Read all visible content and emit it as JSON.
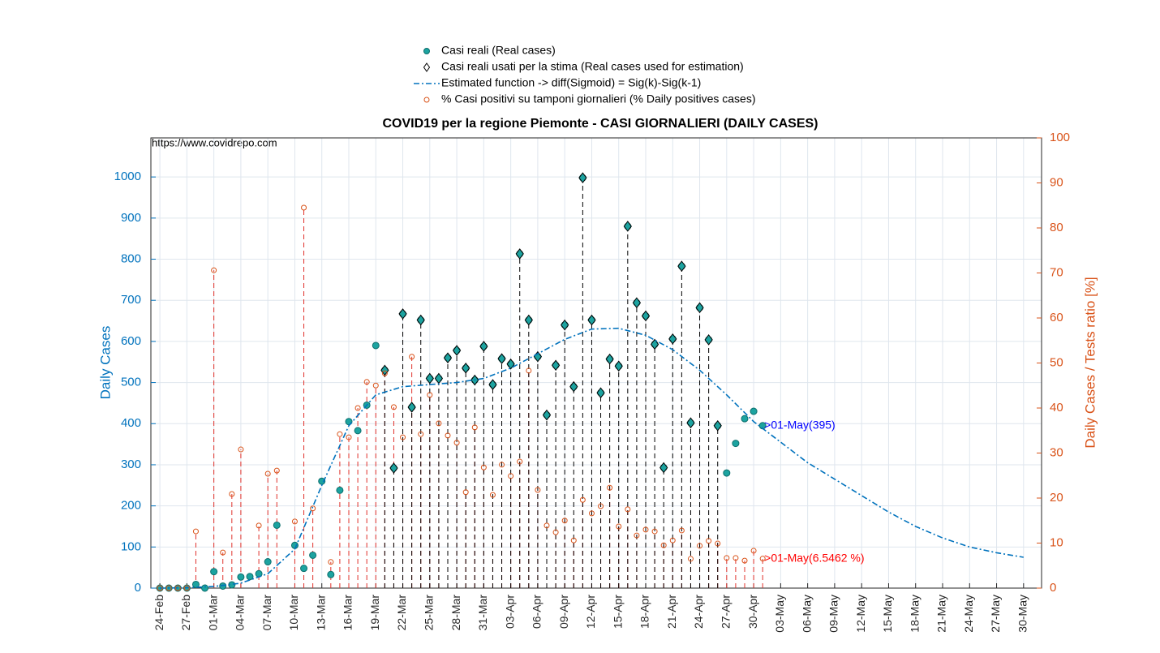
{
  "chart_data": {
    "type": "scatter",
    "title": "COVID19 per la regione Piemonte - CASI GIORNALIERI (DAILY CASES)",
    "source_note": "https://www.covidrepo.com",
    "ylabel": "Daily Cases",
    "y2label": "Daily Cases / Tests ratio [%]",
    "grid": true,
    "legend_position": "top",
    "xlim": [
      -1,
      98
    ],
    "xticks": [
      {
        "value": 0,
        "label": "24-Feb"
      },
      {
        "value": 3,
        "label": "27-Feb"
      },
      {
        "value": 6,
        "label": "01-Mar"
      },
      {
        "value": 9,
        "label": "04-Mar"
      },
      {
        "value": 12,
        "label": "07-Mar"
      },
      {
        "value": 15,
        "label": "10-Mar"
      },
      {
        "value": 18,
        "label": "13-Mar"
      },
      {
        "value": 21,
        "label": "16-Mar"
      },
      {
        "value": 24,
        "label": "19-Mar"
      },
      {
        "value": 27,
        "label": "22-Mar"
      },
      {
        "value": 30,
        "label": "25-Mar"
      },
      {
        "value": 33,
        "label": "28-Mar"
      },
      {
        "value": 36,
        "label": "31-Mar"
      },
      {
        "value": 39,
        "label": "03-Apr"
      },
      {
        "value": 42,
        "label": "06-Apr"
      },
      {
        "value": 45,
        "label": "09-Apr"
      },
      {
        "value": 48,
        "label": "12-Apr"
      },
      {
        "value": 51,
        "label": "15-Apr"
      },
      {
        "value": 54,
        "label": "18-Apr"
      },
      {
        "value": 57,
        "label": "21-Apr"
      },
      {
        "value": 60,
        "label": "24-Apr"
      },
      {
        "value": 63,
        "label": "27-Apr"
      },
      {
        "value": 66,
        "label": "30-Apr"
      },
      {
        "value": 69,
        "label": "03-May"
      },
      {
        "value": 72,
        "label": "06-May"
      },
      {
        "value": 75,
        "label": "09-May"
      },
      {
        "value": 78,
        "label": "12-May"
      },
      {
        "value": 81,
        "label": "15-May"
      },
      {
        "value": 84,
        "label": "18-May"
      },
      {
        "value": 87,
        "label": "21-May"
      },
      {
        "value": 90,
        "label": "24-May"
      },
      {
        "value": 93,
        "label": "27-May"
      },
      {
        "value": 96,
        "label": "30-May"
      }
    ],
    "ylim": [
      0,
      1095
    ],
    "yticks": [
      0,
      100,
      200,
      300,
      400,
      500,
      600,
      700,
      800,
      900,
      1000
    ],
    "y2lim": [
      0,
      100
    ],
    "y2ticks": [
      0,
      10,
      20,
      30,
      40,
      50,
      60,
      70,
      80,
      90,
      100
    ],
    "series": [
      {
        "name": "Casi reali (Real cases)",
        "color": "#1ca3a0",
        "marker": "circle",
        "x": [
          0,
          1,
          2,
          3,
          4,
          5,
          6,
          7,
          8,
          9,
          10,
          11,
          12,
          13,
          14,
          15,
          16,
          17,
          18,
          19,
          20,
          21,
          22,
          23,
          24,
          25,
          26,
          27,
          28,
          29,
          30,
          31,
          32,
          33,
          34,
          35,
          36,
          37,
          38,
          39,
          40,
          41,
          42,
          43,
          44,
          45,
          46,
          47,
          48,
          49,
          50,
          51,
          52,
          53,
          54,
          55,
          56,
          57,
          58,
          59,
          60,
          61,
          62,
          63,
          64,
          65,
          66,
          67
        ],
        "values": [
          0,
          0,
          0,
          0,
          9,
          0,
          40,
          5,
          8,
          27,
          28,
          35,
          64,
          153,
          null,
          104,
          48,
          80,
          260,
          33,
          238,
          405,
          383,
          445,
          590,
          530,
          292,
          667,
          440,
          652,
          510,
          510,
          560,
          578,
          535,
          506,
          588,
          495,
          558,
          545,
          813,
          652,
          563,
          421,
          542,
          640,
          490,
          998,
          652,
          475,
          557,
          540,
          880,
          694,
          662,
          593,
          293,
          606,
          783,
          402,
          682,
          604,
          395,
          280,
          352,
          412,
          430,
          395
        ]
      },
      {
        "name": "Casi reali usati per la stima (Real cases used for estimation)",
        "color": "#1ca3a0",
        "marker": "diamond",
        "stems": true,
        "x": [
          25,
          26,
          27,
          28,
          29,
          30,
          31,
          32,
          33,
          34,
          35,
          36,
          37,
          38,
          39,
          40,
          41,
          42,
          43,
          44,
          45,
          46,
          47,
          48,
          49,
          50,
          51,
          52,
          53,
          54,
          55,
          56,
          57,
          58,
          59,
          60,
          61,
          62
        ],
        "values": [
          530,
          292,
          667,
          440,
          652,
          510,
          510,
          560,
          578,
          535,
          506,
          588,
          495,
          558,
          545,
          813,
          652,
          563,
          421,
          542,
          640,
          490,
          998,
          652,
          475,
          557,
          540,
          880,
          694,
          662,
          593,
          293,
          606,
          783,
          402,
          682,
          604,
          395
        ]
      },
      {
        "name": "Estimated function -> diff(Sigmoid) = Sig(k)-Sig(k-1)",
        "color": "#0072bd",
        "marker": "line",
        "x": [
          0,
          3,
          6,
          9,
          12,
          15,
          18,
          21,
          24,
          27,
          30,
          33,
          36,
          39,
          42,
          45,
          48,
          51,
          54,
          57,
          60,
          63,
          66,
          69,
          72,
          75,
          78,
          81,
          84,
          87,
          90,
          93,
          96
        ],
        "values": [
          0,
          1,
          4,
          12,
          35,
          95,
          250,
          395,
          470,
          490,
          495,
          500,
          510,
          535,
          570,
          605,
          630,
          632,
          615,
          580,
          530,
          470,
          405,
          355,
          305,
          265,
          225,
          185,
          150,
          122,
          100,
          86,
          75
        ]
      },
      {
        "name": "% Casi positivi su tamponi giornalieri (% Daily positives cases)",
        "color": "#d95319",
        "marker": "open-circle",
        "axis": "y2",
        "stems": true,
        "x": [
          0,
          1,
          2,
          3,
          4,
          5,
          6,
          7,
          8,
          9,
          10,
          11,
          12,
          13,
          14,
          15,
          16,
          17,
          18,
          19,
          20,
          21,
          22,
          23,
          24,
          25,
          26,
          27,
          28,
          29,
          30,
          31,
          32,
          33,
          34,
          35,
          36,
          37,
          38,
          39,
          40,
          41,
          42,
          43,
          44,
          45,
          46,
          47,
          48,
          49,
          50,
          51,
          52,
          53,
          54,
          55,
          56,
          57,
          58,
          59,
          60,
          61,
          62,
          63,
          64,
          65,
          66,
          67
        ],
        "values": [
          0,
          0,
          0,
          0,
          12.6,
          null,
          70.6,
          7.9,
          20.9,
          30.8,
          null,
          13.9,
          25.4,
          26.1,
          null,
          14.8,
          84.5,
          17.7,
          null,
          5.8,
          34.2,
          33.5,
          40.0,
          45.8,
          45,
          47.7,
          40.2,
          33.5,
          51.4,
          34.2,
          42.9,
          36.6,
          33.9,
          32.3,
          21.3,
          35.7,
          26.8,
          20.7,
          27.4,
          24.9,
          28.1,
          48.3,
          21.8,
          13.9,
          12.4,
          15.0,
          10.6,
          19.6,
          16.6,
          18.2,
          22.3,
          13.7,
          17.5,
          11.7,
          13.0,
          12.6,
          9.5,
          10.6,
          12.8,
          6.5,
          9.4,
          10.5,
          9.9,
          6.7,
          6.7,
          6.1,
          8.3,
          6.5462
        ]
      }
    ],
    "annotations": [
      {
        "text": ">01-May(395)",
        "color": "#0000ff"
      },
      {
        "text": ">01-May(6.5462 %)",
        "color": "#ff0000"
      }
    ]
  }
}
